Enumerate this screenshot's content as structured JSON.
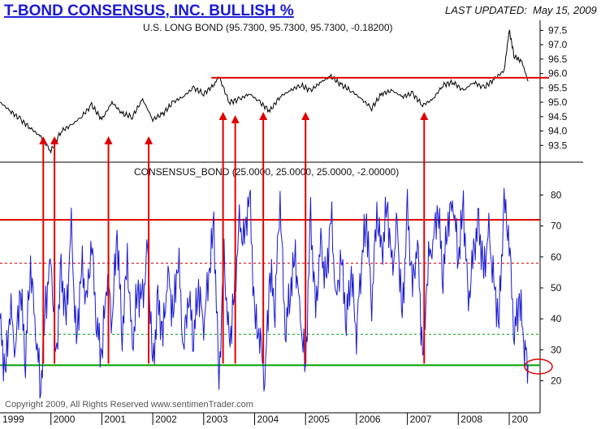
{
  "header": {
    "title": "T-BOND CONSENSUS, INC. BULLISH %",
    "updated_label": "LAST UPDATED:",
    "updated_date": "May 15, 2009"
  },
  "footer": {
    "copyright": "Copyright 2009, All Rights Reserved  www.sentimenTrader.com"
  },
  "colors": {
    "title": "#1a1ad6",
    "series": "#1a1ad6",
    "bond": "#000000",
    "reference": "#e00000",
    "support": "#00a000",
    "mid_line": "#00a000"
  },
  "chart_data": [
    {
      "type": "line",
      "title": "U.S. LONG BOND (95.7300, 95.7300, 95.7300, -0.18200)",
      "ylim": [
        93.0,
        97.85
      ],
      "yticks": [
        "97.5",
        "97.0",
        "96.5",
        "96.0",
        "95.5",
        "95.0",
        "94.5",
        "94.0",
        "93.5"
      ],
      "resistance_level": 95.85,
      "series": [
        {
          "x": [
            1999.0,
            1999.2,
            1999.4,
            1999.6,
            1999.8,
            2000.0,
            2000.2,
            2000.4,
            2000.6,
            2000.8,
            2001.0,
            2001.2,
            2001.4,
            2001.6,
            2001.8,
            2002.0,
            2002.2,
            2002.4,
            2002.6,
            2002.8,
            2003.0,
            2003.2,
            2003.3,
            2003.5,
            2003.7,
            2003.9,
            2004.1,
            2004.3,
            2004.5,
            2004.7,
            2004.9,
            2005.1,
            2005.3,
            2005.5,
            2005.7,
            2005.9,
            2006.1,
            2006.3,
            2006.5,
            2006.7,
            2006.9,
            2007.1,
            2007.3,
            2007.5,
            2007.7,
            2007.9,
            2008.1,
            2008.3,
            2008.5,
            2008.7,
            2008.9,
            2009.0,
            2009.1,
            2009.25,
            2009.37
          ],
          "values": [
            95.0,
            94.7,
            94.4,
            94.1,
            93.8,
            93.3,
            94.0,
            94.2,
            94.5,
            94.9,
            94.4,
            95.0,
            94.6,
            94.5,
            95.1,
            94.4,
            94.6,
            95.0,
            95.2,
            95.5,
            95.3,
            95.6,
            95.9,
            95.0,
            95.1,
            95.3,
            95.0,
            94.7,
            95.2,
            95.4,
            95.6,
            95.4,
            95.7,
            95.9,
            95.6,
            95.4,
            95.1,
            94.8,
            95.3,
            95.4,
            95.2,
            95.3,
            94.9,
            95.1,
            95.6,
            95.7,
            95.4,
            95.7,
            95.5,
            95.8,
            96.1,
            97.5,
            96.6,
            96.4,
            95.73
          ]
        }
      ]
    },
    {
      "type": "line",
      "title": "CONSENSUS_BOND (25.0000, 25.0000, 25.0000, -2.00000)",
      "ylim": [
        12,
        88
      ],
      "yticks": [
        "80",
        "70",
        "60",
        "50",
        "40",
        "30",
        "20"
      ],
      "reference_lines": [
        {
          "value": 72,
          "style": "solid",
          "color": "#e00000"
        },
        {
          "value": 58,
          "style": "dashed",
          "color": "#e00000"
        },
        {
          "value": 35,
          "style": "dashed",
          "color": "#00a000"
        },
        {
          "value": 25,
          "style": "solid",
          "color": "#00a000"
        }
      ],
      "series": [
        {
          "x": [
            1999.0,
            1999.1,
            1999.2,
            1999.3,
            1999.4,
            1999.5,
            1999.6,
            1999.7,
            1999.8,
            1999.9,
            2000.0,
            2000.1,
            2000.2,
            2000.3,
            2000.4,
            2000.5,
            2000.6,
            2000.7,
            2000.8,
            2000.9,
            2001.0,
            2001.1,
            2001.2,
            2001.3,
            2001.4,
            2001.5,
            2001.6,
            2001.7,
            2001.8,
            2001.9,
            2002.0,
            2002.1,
            2002.2,
            2002.3,
            2002.4,
            2002.5,
            2002.6,
            2002.7,
            2002.8,
            2002.9,
            2003.0,
            2003.1,
            2003.2,
            2003.3,
            2003.4,
            2003.5,
            2003.6,
            2003.7,
            2003.8,
            2003.9,
            2004.0,
            2004.1,
            2004.2,
            2004.3,
            2004.4,
            2004.5,
            2004.6,
            2004.7,
            2004.8,
            2004.9,
            2005.0,
            2005.1,
            2005.2,
            2005.3,
            2005.4,
            2005.5,
            2005.6,
            2005.7,
            2005.8,
            2005.9,
            2006.0,
            2006.1,
            2006.2,
            2006.3,
            2006.4,
            2006.5,
            2006.6,
            2006.7,
            2006.8,
            2006.9,
            2007.0,
            2007.1,
            2007.2,
            2007.3,
            2007.4,
            2007.5,
            2007.6,
            2007.7,
            2007.8,
            2007.9,
            2008.0,
            2008.1,
            2008.2,
            2008.3,
            2008.4,
            2008.5,
            2008.6,
            2008.7,
            2008.8,
            2008.9,
            2009.0,
            2009.1,
            2009.2,
            2009.3,
            2009.37
          ],
          "values": [
            40,
            21,
            45,
            30,
            50,
            28,
            58,
            36,
            18,
            45,
            60,
            27,
            55,
            40,
            70,
            30,
            58,
            45,
            65,
            38,
            28,
            55,
            40,
            68,
            35,
            60,
            30,
            50,
            45,
            63,
            24,
            45,
            35,
            55,
            40,
            62,
            30,
            48,
            35,
            50,
            38,
            55,
            70,
            20,
            60,
            30,
            48,
            70,
            65,
            82,
            40,
            35,
            20,
            55,
            45,
            80,
            35,
            50,
            60,
            40,
            24,
            72,
            42,
            65,
            50,
            75,
            45,
            60,
            40,
            55,
            35,
            60,
            72,
            45,
            75,
            60,
            78,
            55,
            70,
            40,
            75,
            50,
            65,
            26,
            58,
            65,
            76,
            55,
            72,
            78,
            60,
            76,
            45,
            62,
            70,
            55,
            68,
            50,
            40,
            78,
            65,
            35,
            47,
            32,
            25
          ]
        }
      ]
    }
  ],
  "x_axis": {
    "years": [
      "1999",
      "2000",
      "2001",
      "2002",
      "2003",
      "2004",
      "2005",
      "2006",
      "2007",
      "2008",
      "200"
    ]
  },
  "signals": [
    1999.85,
    2000.07,
    2001.13,
    2001.92,
    2003.38,
    2003.62,
    2004.17,
    2005.0,
    2007.33
  ]
}
